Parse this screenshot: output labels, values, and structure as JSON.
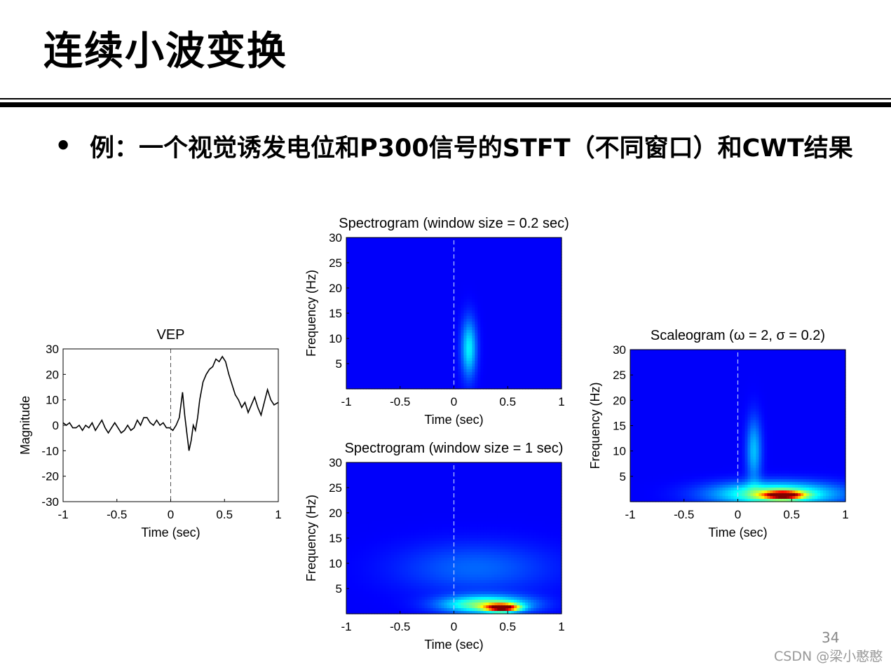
{
  "slide": {
    "title": "连续小波变换",
    "bullet_text": "例：一个视觉诱发电位和P300信号的STFT（不同窗口）和CWT结果",
    "page_number": "34",
    "watermark": "CSDN @梁小憨憨"
  },
  "chart_data": [
    {
      "id": "vep",
      "type": "line",
      "title": "VEP",
      "xlabel": "Time (sec)",
      "ylabel": "Magnitude",
      "xlim": [
        -1,
        1
      ],
      "ylim": [
        -30,
        30
      ],
      "xticks": [
        -1,
        -0.5,
        0,
        0.5,
        1
      ],
      "xtick_labels": [
        "-1",
        "-0.5",
        "0",
        "0.5",
        "1"
      ],
      "yticks": [
        -30,
        -20,
        -10,
        0,
        10,
        20,
        30
      ],
      "ytick_labels": [
        "-30",
        "-20",
        "-10",
        "0",
        "10",
        "20",
        "30"
      ],
      "marker_line_x": 0,
      "grid": false,
      "line_color": "#000000",
      "series": [
        {
          "x": [
            -1,
            -0.97,
            -0.94,
            -0.91,
            -0.88,
            -0.85,
            -0.82,
            -0.79,
            -0.76,
            -0.73,
            -0.7,
            -0.67,
            -0.64,
            -0.61,
            -0.58,
            -0.55,
            -0.52,
            -0.49,
            -0.46,
            -0.43,
            -0.4,
            -0.37,
            -0.34,
            -0.31,
            -0.28,
            -0.25,
            -0.22,
            -0.19,
            -0.16,
            -0.13,
            -0.1,
            -0.07,
            -0.04,
            -0.01,
            0.02,
            0.05,
            0.08,
            0.11,
            0.13,
            0.15,
            0.17,
            0.19,
            0.21,
            0.23,
            0.25,
            0.27,
            0.3,
            0.33,
            0.36,
            0.39,
            0.42,
            0.45,
            0.48,
            0.51,
            0.54,
            0.57,
            0.6,
            0.63,
            0.66,
            0.69,
            0.72,
            0.75,
            0.78,
            0.81,
            0.84,
            0.87,
            0.9,
            0.93,
            0.96,
            1.0
          ],
          "y": [
            1,
            0,
            1,
            -1,
            -1,
            0,
            -2,
            0,
            -1,
            1,
            -2,
            0,
            2,
            -1,
            -3,
            -1,
            1,
            -1,
            -3,
            -2,
            0,
            -2,
            -1,
            2,
            0,
            3,
            3,
            1,
            0,
            2,
            0,
            1,
            -1,
            -1,
            -2,
            0,
            3,
            13,
            4,
            -3,
            -10,
            -6,
            0,
            -2,
            3,
            10,
            17,
            20,
            22,
            23,
            26,
            25,
            27,
            25,
            20,
            16,
            12,
            10,
            7,
            9,
            5,
            8,
            11,
            7,
            4,
            9,
            14,
            10,
            8,
            9
          ]
        }
      ]
    },
    {
      "id": "spectrogram-02",
      "type": "heatmap",
      "title": "Spectrogram (window size = 0.2 sec)",
      "xlabel": "Time (sec)",
      "ylabel": "Frequency (Hz)",
      "xlim": [
        -1,
        1
      ],
      "ylim": [
        0,
        30
      ],
      "xticks": [
        -1,
        -0.5,
        0,
        0.5,
        1
      ],
      "xtick_labels": [
        "-1",
        "-0.5",
        "0",
        "0.5",
        "1"
      ],
      "yticks": [
        5,
        10,
        15,
        20,
        25,
        30
      ],
      "ytick_labels": [
        "5",
        "10",
        "15",
        "20",
        "25",
        "30"
      ],
      "marker_line_x": 0,
      "colormap": "jet",
      "background_intensity": 0.0,
      "blobs": [
        {
          "t": 0.14,
          "f": 8,
          "t_spread": 0.05,
          "f_spread": 4,
          "intensity": 0.28
        }
      ]
    },
    {
      "id": "spectrogram-1",
      "type": "heatmap",
      "title": "Spectrogram (window size = 1 sec)",
      "xlabel": "Time (sec)",
      "ylabel": "Frequency (Hz)",
      "xlim": [
        -1,
        1
      ],
      "ylim": [
        0,
        30
      ],
      "xticks": [
        -1,
        -0.5,
        0,
        0.5,
        1
      ],
      "xtick_labels": [
        "-1",
        "-0.5",
        "0",
        "0.5",
        "1"
      ],
      "yticks": [
        5,
        10,
        15,
        20,
        25,
        30
      ],
      "ytick_labels": [
        "5",
        "10",
        "15",
        "20",
        "25",
        "30"
      ],
      "marker_line_x": 0,
      "colormap": "jet",
      "background_intensity": 0.0,
      "blobs": [
        {
          "t": 0.45,
          "f": 1.2,
          "t_spread": 0.1,
          "f_spread": 0.5,
          "intensity": 0.95
        },
        {
          "t": 0.3,
          "f": 1.8,
          "t_spread": 0.28,
          "f_spread": 1.2,
          "intensity": 0.45
        },
        {
          "t": 0.2,
          "f": 9,
          "t_spread": 0.5,
          "f_spread": 3.5,
          "intensity": 0.12
        }
      ]
    },
    {
      "id": "scaleogram",
      "type": "heatmap",
      "title": "Scaleogram (ω = 2, σ = 0.2)",
      "xlabel": "Time (sec)",
      "ylabel": "Frequency (Hz)",
      "xlim": [
        -1,
        1
      ],
      "ylim": [
        0,
        30
      ],
      "xticks": [
        -1,
        -0.5,
        0,
        0.5,
        1
      ],
      "xtick_labels": [
        "-1",
        "-0.5",
        "0",
        "0.5",
        "1"
      ],
      "yticks": [
        5,
        10,
        15,
        20,
        25,
        30
      ],
      "ytick_labels": [
        "5",
        "10",
        "15",
        "20",
        "25",
        "30"
      ],
      "marker_line_x": 0,
      "colormap": "jet",
      "background_intensity": 0.0,
      "blobs": [
        {
          "t": 0.42,
          "f": 1.3,
          "t_spread": 0.12,
          "f_spread": 0.5,
          "intensity": 0.95
        },
        {
          "t": 0.35,
          "f": 1.5,
          "t_spread": 0.4,
          "f_spread": 1.6,
          "intensity": 0.45
        },
        {
          "t": 0.15,
          "f": 10,
          "t_spread": 0.05,
          "f_spread": 4.5,
          "intensity": 0.22
        }
      ]
    }
  ]
}
